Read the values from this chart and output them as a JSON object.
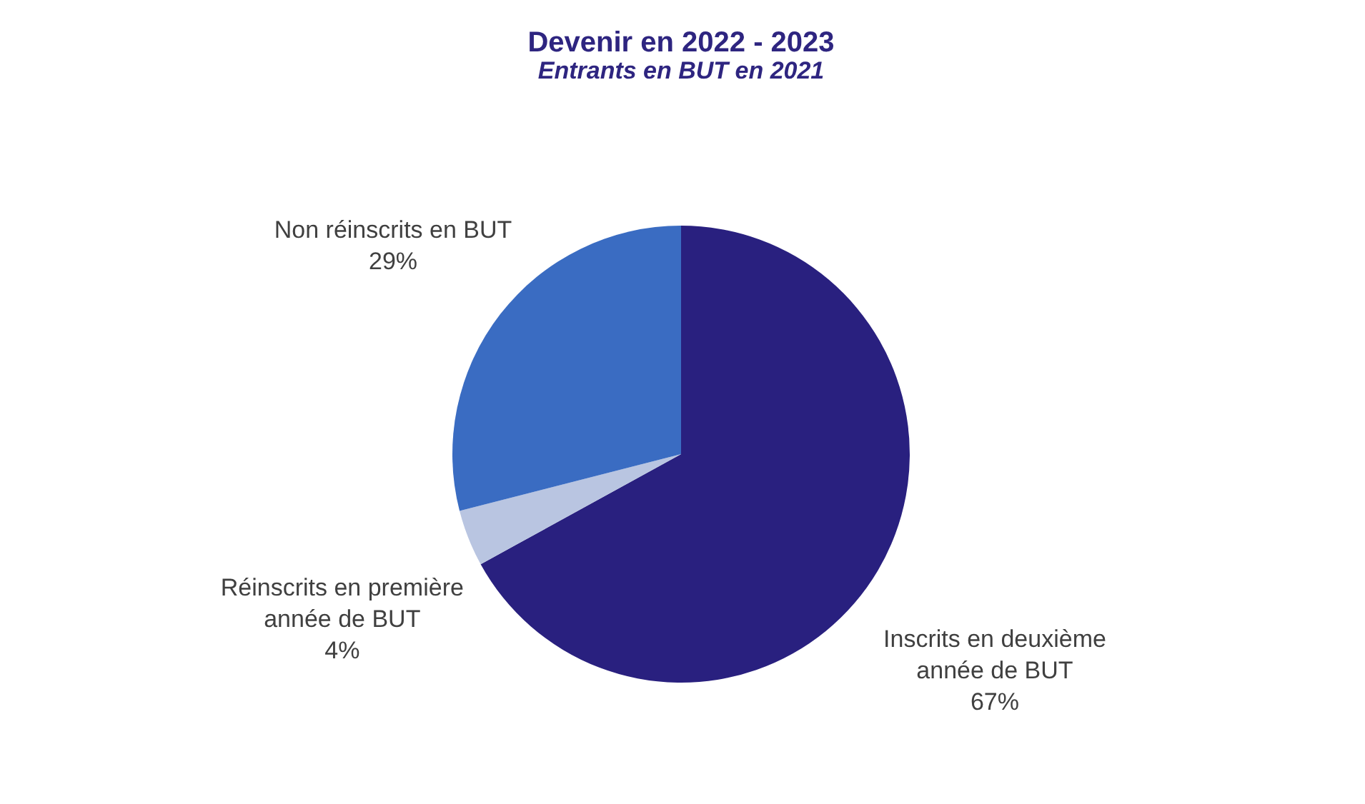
{
  "chart_data": {
    "type": "pie",
    "title": "Devenir en 2022 - 2023",
    "subtitle": "Entrants en BUT en 2021",
    "categories": [
      "Inscrits en deuxième année de BUT",
      "Réinscrits en première année de BUT",
      "Non réinscrits en BUT"
    ],
    "values": [
      67,
      4,
      29
    ],
    "colors": [
      "#29207f",
      "#b9c5e1",
      "#3a6cc2"
    ],
    "value_labels": [
      "67%",
      "4%",
      "29%"
    ]
  }
}
